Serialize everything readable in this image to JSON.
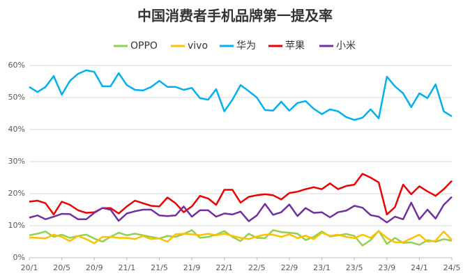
{
  "chart_data": {
    "type": "line",
    "title": "中国消费者手机品牌第一提及率",
    "categories": [
      "20/1",
      null,
      null,
      null,
      "20/5",
      null,
      null,
      null,
      "20/9",
      null,
      null,
      null,
      "21/1",
      null,
      null,
      null,
      "21/5",
      null,
      null,
      null,
      "21/9",
      null,
      null,
      null,
      "22/1",
      null,
      null,
      null,
      "22/5",
      null,
      null,
      null,
      "22/9",
      null,
      null,
      null,
      "23/1",
      null,
      null,
      null,
      "23/5",
      null,
      null,
      null,
      "23/9",
      null,
      null,
      null,
      "24/1",
      null,
      null,
      null,
      "24/5"
    ],
    "series": [
      {
        "name": "OPPO",
        "color": "#92d050",
        "values": [
          7,
          7.5,
          8.2,
          6.5,
          7.2,
          6.2,
          6.8,
          7.2,
          6,
          5,
          6.5,
          7.8,
          7,
          7.5,
          7,
          6.5,
          6,
          6.8,
          6.5,
          7.4,
          8.6,
          6.2,
          6.5,
          7.2,
          8.3,
          6.5,
          5.2,
          7.5,
          6.2,
          6.1,
          8.6,
          8,
          7.8,
          7.5,
          5.5,
          6.5,
          8.2,
          6.6,
          7,
          7.4,
          6.8,
          3.8,
          5.5,
          8.4,
          4.3,
          6.2,
          4.6,
          4.8,
          4,
          5.5,
          5,
          5.8,
          5.3
        ]
      },
      {
        "name": "vivo",
        "color": "#ffc000",
        "values": [
          6.3,
          6.2,
          6,
          7.2,
          6.5,
          5.2,
          6.8,
          5.8,
          4.5,
          6.5,
          6.5,
          6.2,
          6.2,
          5.8,
          6.8,
          5.8,
          6,
          5,
          7.3,
          7.5,
          7.3,
          7,
          7.5,
          7,
          7.5,
          6.8,
          6.2,
          5.8,
          6.6,
          7.2,
          7.2,
          6.5,
          7.3,
          6.1,
          6.9,
          5.8,
          7.8,
          6.8,
          7.2,
          6.5,
          6.1,
          7.2,
          6.2,
          8.3,
          6.2,
          4.8,
          4.8,
          6,
          7.2,
          5,
          5.3,
          8.2,
          5.5
        ]
      },
      {
        "name": "华为",
        "color": "#00b0f0",
        "values": [
          53.3,
          51.7,
          53.3,
          56.7,
          50.9,
          55.2,
          57.4,
          58.5,
          58,
          53.5,
          53.5,
          57.6,
          53.9,
          52.4,
          52.2,
          53.3,
          55.2,
          53.3,
          53.3,
          52.4,
          53,
          49.8,
          49.3,
          52.6,
          45.7,
          49.3,
          53.9,
          52,
          50,
          46.1,
          45.9,
          48.7,
          45.9,
          48.3,
          48.9,
          46.5,
          44.8,
          46.3,
          45.7,
          43.9,
          43,
          43.7,
          46.3,
          43.5,
          56.5,
          53.5,
          51.3,
          47,
          51.3,
          49.8,
          54.1,
          45.7,
          44.1
        ]
      },
      {
        "name": "苹果",
        "color": "#ee0000",
        "values": [
          17.5,
          17.8,
          17,
          13.5,
          17.5,
          16.5,
          14.8,
          14,
          14.2,
          15.5,
          15.5,
          13.8,
          16,
          17.8,
          17,
          16.2,
          16,
          18.8,
          17,
          14.2,
          16,
          19.3,
          18.5,
          16.5,
          21.2,
          21.2,
          17.2,
          19,
          19.5,
          19.8,
          19.5,
          18.2,
          20.2,
          20.6,
          21.4,
          22,
          21.4,
          23.2,
          21.4,
          22.4,
          22.8,
          26.2,
          25,
          23.5,
          13.5,
          15.8,
          22.8,
          19.8,
          22.3,
          20.7,
          19.3,
          21.4,
          24
        ]
      },
      {
        "name": "小米",
        "color": "#7030a0",
        "values": [
          12.5,
          13.2,
          12,
          12.8,
          13.7,
          13.6,
          12,
          12,
          14,
          15.5,
          15,
          11.5,
          13.8,
          14.5,
          15,
          15,
          13.2,
          13,
          13.2,
          16,
          12.8,
          14.8,
          14.8,
          12.8,
          13.8,
          13.5,
          14.4,
          11.4,
          13.2,
          16.8,
          13.4,
          14.2,
          16.6,
          13,
          15.5,
          14,
          14.2,
          12.6,
          14.2,
          14.7,
          16.2,
          15.6,
          13.3,
          12.8,
          11,
          12.8,
          12,
          17.2,
          12,
          15,
          12.2,
          16.5,
          19
        ]
      }
    ],
    "ylim": [
      0,
      60
    ],
    "yticks": [
      {
        "value": 0,
        "label": "0%"
      },
      {
        "value": 10,
        "label": "10%"
      },
      {
        "value": 20,
        "label": "20%"
      },
      {
        "value": 30,
        "label": "30%"
      },
      {
        "value": 40,
        "label": "40%"
      },
      {
        "value": 50,
        "label": "50%"
      },
      {
        "value": 60,
        "label": "60%"
      }
    ],
    "grid": true,
    "legend": "top"
  }
}
